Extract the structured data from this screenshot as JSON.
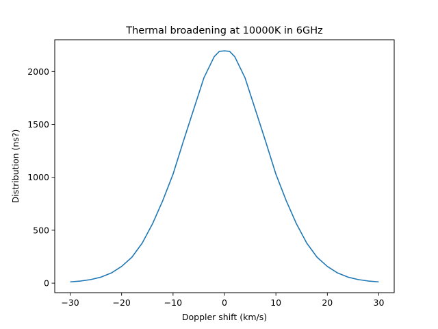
{
  "chart_data": {
    "type": "line",
    "title": "Thermal broadening at 10000K in 6GHz",
    "xlabel": "Doppler shift (km/s)",
    "ylabel": "Distribution (ns?)",
    "xlim": [
      -33,
      33
    ],
    "ylim": [
      -90,
      2300
    ],
    "grid": false,
    "x_ticks": [
      -30,
      -20,
      -10,
      0,
      10,
      20,
      30
    ],
    "x_tick_labels": [
      "−30",
      "−20",
      "−10",
      "0",
      "10",
      "20",
      "30"
    ],
    "y_ticks": [
      0,
      500,
      1000,
      1500,
      2000
    ],
    "y_tick_labels": [
      "0",
      "500",
      "1000",
      "1500",
      "2000"
    ],
    "series": [
      {
        "color": "#1f77b4",
        "x": [
          -30,
          -28,
          -26,
          -24,
          -22,
          -20,
          -18,
          -16,
          -14,
          -12,
          -10,
          -8,
          -6,
          -4,
          -2,
          -1,
          0,
          1,
          2,
          4,
          6,
          8,
          10,
          12,
          14,
          16,
          18,
          20,
          22,
          24,
          26,
          28,
          30
        ],
        "y": [
          12,
          20,
          34,
          57,
          96,
          158,
          245,
          378,
          560,
          780,
          1030,
          1340,
          1640,
          1940,
          2140,
          2190,
          2195,
          2190,
          2140,
          1940,
          1640,
          1340,
          1030,
          780,
          560,
          378,
          245,
          158,
          96,
          57,
          34,
          20,
          12
        ]
      }
    ]
  }
}
